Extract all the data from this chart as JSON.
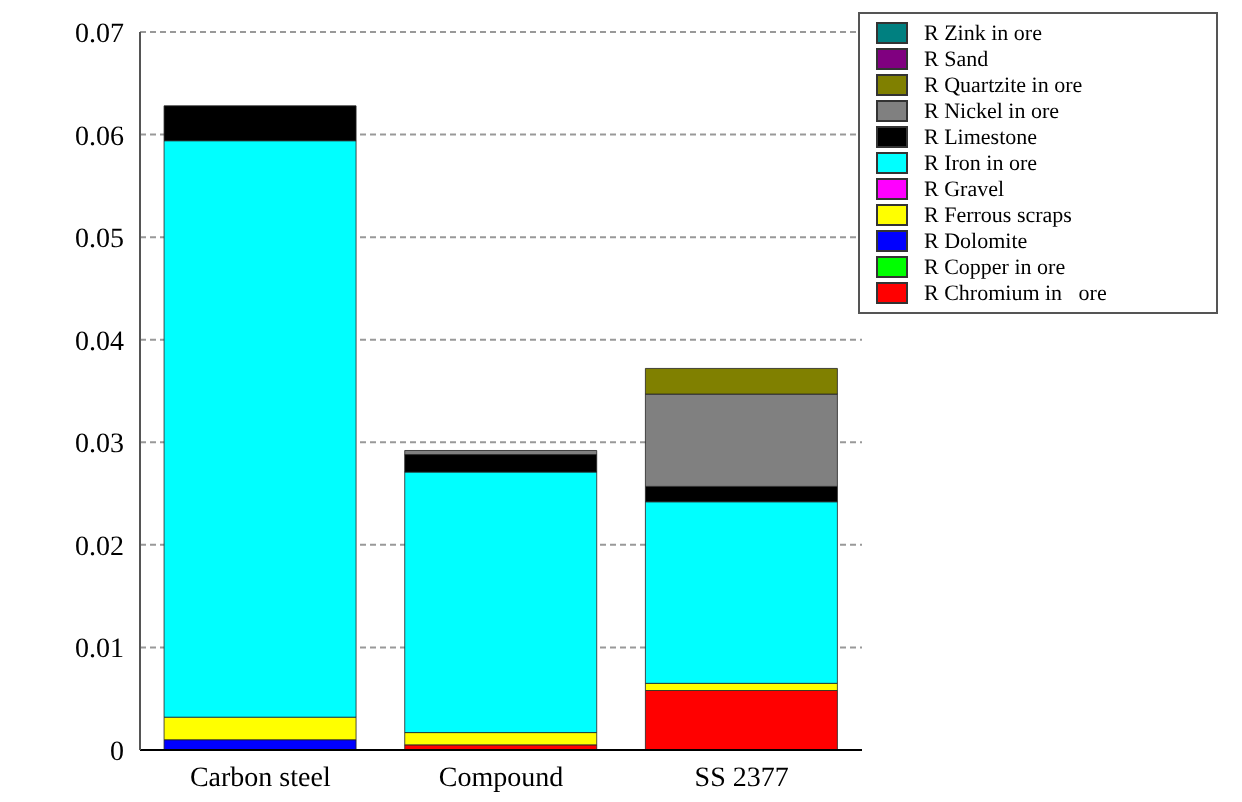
{
  "chart_data": {
    "type": "bar",
    "stacked": true,
    "categories": [
      "Carbon steel",
      "Compound",
      "SS 2377"
    ],
    "series": [
      {
        "name": "R Chromium in   ore",
        "color": "#ff0000",
        "values": [
          0,
          0.0005,
          0.0058
        ]
      },
      {
        "name": "R Copper in ore",
        "color": "#00ff00",
        "values": [
          0,
          0,
          0
        ]
      },
      {
        "name": "R Dolomite",
        "color": "#0000ff",
        "values": [
          0.001,
          0,
          0
        ]
      },
      {
        "name": "R Ferrous scraps",
        "color": "#ffff00",
        "values": [
          0.0022,
          0.0012,
          0.0007
        ]
      },
      {
        "name": "R Gravel",
        "color": "#ff00ff",
        "values": [
          0,
          0,
          0
        ]
      },
      {
        "name": "R Iron in ore",
        "color": "#00ffff",
        "values": [
          0.0562,
          0.0254,
          0.0177
        ]
      },
      {
        "name": "R Limestone",
        "color": "#000000",
        "values": [
          0.0034,
          0.0017,
          0.0015
        ]
      },
      {
        "name": "R Nickel in ore",
        "color": "#808080",
        "values": [
          0,
          0.0004,
          0.009
        ]
      },
      {
        "name": "R Quartzite in ore",
        "color": "#808000",
        "values": [
          0,
          0,
          0.0025
        ]
      },
      {
        "name": "R Sand",
        "color": "#800080",
        "values": [
          0,
          0,
          0
        ]
      },
      {
        "name": "R Zink in ore",
        "color": "#008080",
        "values": [
          0,
          0,
          0
        ]
      }
    ],
    "ylim": [
      0,
      0.07
    ],
    "yticks": [
      0,
      0.01,
      0.02,
      0.03,
      0.04,
      0.05,
      0.06,
      0.07
    ],
    "grid": "y",
    "legend": "top right"
  }
}
